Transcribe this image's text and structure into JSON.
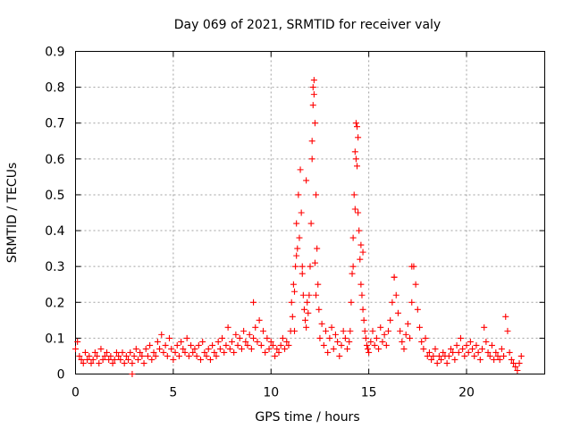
{
  "chart_data": {
    "type": "scatter",
    "title": "Day 069 of 2021, SRMTID for receiver valy",
    "xlabel": "GPS time / hours",
    "ylabel": "SRMTID / TECUs",
    "xlim": [
      0,
      24
    ],
    "ylim": [
      0,
      0.9
    ],
    "xticks": [
      0,
      5,
      10,
      15,
      20
    ],
    "yticks": [
      0,
      0.1,
      0.2,
      0.3,
      0.4,
      0.5,
      0.6,
      0.7,
      0.8,
      0.9
    ],
    "ytick_labels": [
      "0",
      "0.1",
      "0.2",
      "0.3",
      "0.4",
      "0.5",
      "0.6",
      "0.7",
      "0.8",
      "0.9"
    ],
    "grid": true,
    "marker": "+",
    "color": "#ff0000",
    "series": [
      {
        "name": "SRMTID",
        "x": [
          0.0,
          0.1,
          0.2,
          0.3,
          0.4,
          0.5,
          0.6,
          0.7,
          0.8,
          0.9,
          1.0,
          1.1,
          1.2,
          1.3,
          1.4,
          1.5,
          1.6,
          1.7,
          1.8,
          1.9,
          2.0,
          2.1,
          2.2,
          2.3,
          2.4,
          2.5,
          2.6,
          2.7,
          2.8,
          2.9,
          3.0,
          3.1,
          3.2,
          3.3,
          3.4,
          3.5,
          3.6,
          3.7,
          3.8,
          3.9,
          4.0,
          4.1,
          4.2,
          4.3,
          4.4,
          4.5,
          4.6,
          4.7,
          4.8,
          4.9,
          5.0,
          5.1,
          5.2,
          5.3,
          5.4,
          5.5,
          5.6,
          5.7,
          5.8,
          5.9,
          6.0,
          6.1,
          6.2,
          6.3,
          6.4,
          6.5,
          6.6,
          6.7,
          6.8,
          6.9,
          7.0,
          7.1,
          7.2,
          7.3,
          7.4,
          7.5,
          7.6,
          7.7,
          7.8,
          7.9,
          8.0,
          8.1,
          8.2,
          8.3,
          8.4,
          8.5,
          8.6,
          8.7,
          8.8,
          8.9,
          9.0,
          9.1,
          9.2,
          9.3,
          9.4,
          9.5,
          9.6,
          9.7,
          9.8,
          9.9,
          10.0,
          10.1,
          10.2,
          10.3,
          10.4,
          10.5,
          10.6,
          10.7,
          10.8,
          10.9,
          11.0,
          11.05,
          11.1,
          11.15,
          11.2,
          11.25,
          11.3,
          11.35,
          11.4,
          11.45,
          11.5,
          11.55,
          11.6,
          11.65,
          11.7,
          11.75,
          11.8,
          11.85,
          11.9,
          11.95,
          12.0,
          12.05,
          12.1,
          12.15,
          12.2,
          12.25,
          12.3,
          12.35,
          12.4,
          12.45,
          12.5,
          12.6,
          12.7,
          12.8,
          12.9,
          13.0,
          13.1,
          13.2,
          13.3,
          13.4,
          13.5,
          13.6,
          13.7,
          13.8,
          13.9,
          14.0,
          14.05,
          14.1,
          14.15,
          14.2,
          14.25,
          14.3,
          14.35,
          14.4,
          14.45,
          14.5,
          14.55,
          14.6,
          14.65,
          14.7,
          14.75,
          14.8,
          14.85,
          14.9,
          14.95,
          15.0,
          15.1,
          15.2,
          15.3,
          15.4,
          15.5,
          15.6,
          15.7,
          15.8,
          15.9,
          16.0,
          16.1,
          16.2,
          16.3,
          16.4,
          16.5,
          16.6,
          16.7,
          16.8,
          16.9,
          17.0,
          17.1,
          17.2,
          17.3,
          17.4,
          17.5,
          17.6,
          17.7,
          17.8,
          17.9,
          18.0,
          18.1,
          18.2,
          18.3,
          18.4,
          18.5,
          18.6,
          18.7,
          18.8,
          18.9,
          19.0,
          19.1,
          19.2,
          19.3,
          19.4,
          19.5,
          19.6,
          19.7,
          19.8,
          19.9,
          20.0,
          20.1,
          20.2,
          20.3,
          20.4,
          20.5,
          20.6,
          20.7,
          20.8,
          20.9,
          21.0,
          21.1,
          21.2,
          21.3,
          21.4,
          21.5,
          21.6,
          21.7,
          21.8,
          21.9,
          22.0,
          22.1,
          22.2,
          22.3,
          22.4,
          22.5,
          22.6,
          22.7,
          22.8,
          2.9,
          9.1,
          11.6,
          11.8,
          12.1,
          12.15,
          12.2,
          14.3,
          14.35,
          14.4,
          14.45,
          16.3,
          17.2,
          12.25,
          11.3,
          14.6,
          14.7,
          12.3,
          11.2,
          14.2
        ],
        "y": [
          0.07,
          0.09,
          0.05,
          0.04,
          0.03,
          0.06,
          0.04,
          0.05,
          0.03,
          0.04,
          0.06,
          0.05,
          0.03,
          0.07,
          0.04,
          0.05,
          0.06,
          0.04,
          0.05,
          0.03,
          0.04,
          0.06,
          0.05,
          0.04,
          0.06,
          0.03,
          0.05,
          0.04,
          0.06,
          0.03,
          0.05,
          0.07,
          0.04,
          0.06,
          0.05,
          0.03,
          0.07,
          0.05,
          0.08,
          0.04,
          0.06,
          0.05,
          0.09,
          0.07,
          0.11,
          0.06,
          0.08,
          0.05,
          0.1,
          0.07,
          0.04,
          0.06,
          0.08,
          0.05,
          0.09,
          0.07,
          0.06,
          0.1,
          0.05,
          0.08,
          0.06,
          0.07,
          0.05,
          0.08,
          0.04,
          0.09,
          0.06,
          0.05,
          0.07,
          0.04,
          0.08,
          0.06,
          0.05,
          0.09,
          0.07,
          0.1,
          0.06,
          0.08,
          0.13,
          0.07,
          0.09,
          0.06,
          0.11,
          0.08,
          0.1,
          0.07,
          0.12,
          0.09,
          0.08,
          0.11,
          0.07,
          0.1,
          0.13,
          0.09,
          0.15,
          0.08,
          0.12,
          0.06,
          0.1,
          0.07,
          0.09,
          0.08,
          0.05,
          0.07,
          0.06,
          0.08,
          0.1,
          0.07,
          0.09,
          0.08,
          0.12,
          0.2,
          0.16,
          0.25,
          0.12,
          0.3,
          0.42,
          0.35,
          0.5,
          0.38,
          0.57,
          0.45,
          0.3,
          0.22,
          0.18,
          0.15,
          0.13,
          0.2,
          0.17,
          0.22,
          0.3,
          0.42,
          0.6,
          0.75,
          0.82,
          0.7,
          0.5,
          0.35,
          0.25,
          0.18,
          0.1,
          0.14,
          0.08,
          0.12,
          0.06,
          0.1,
          0.13,
          0.07,
          0.11,
          0.09,
          0.05,
          0.08,
          0.12,
          0.1,
          0.07,
          0.09,
          0.12,
          0.2,
          0.28,
          0.38,
          0.5,
          0.62,
          0.7,
          0.58,
          0.45,
          0.4,
          0.32,
          0.25,
          0.22,
          0.18,
          0.15,
          0.12,
          0.1,
          0.08,
          0.07,
          0.06,
          0.09,
          0.12,
          0.08,
          0.1,
          0.07,
          0.13,
          0.09,
          0.11,
          0.08,
          0.12,
          0.15,
          0.2,
          0.27,
          0.22,
          0.17,
          0.12,
          0.09,
          0.07,
          0.11,
          0.14,
          0.1,
          0.2,
          0.3,
          0.25,
          0.18,
          0.13,
          0.09,
          0.07,
          0.1,
          0.05,
          0.06,
          0.04,
          0.05,
          0.07,
          0.03,
          0.05,
          0.04,
          0.06,
          0.05,
          0.03,
          0.05,
          0.07,
          0.06,
          0.04,
          0.08,
          0.06,
          0.1,
          0.07,
          0.05,
          0.08,
          0.06,
          0.09,
          0.07,
          0.05,
          0.08,
          0.06,
          0.04,
          0.07,
          0.13,
          0.09,
          0.06,
          0.05,
          0.08,
          0.04,
          0.06,
          0.05,
          0.04,
          0.07,
          0.05,
          0.16,
          0.12,
          0.06,
          0.04,
          0.03,
          0.02,
          0.01,
          0.03,
          0.05,
          0.0,
          0.2,
          0.28,
          0.54,
          0.65,
          0.8,
          0.78,
          0.46,
          0.6,
          0.69,
          0.66,
          0.27,
          0.3,
          0.31,
          0.33,
          0.36,
          0.34,
          0.22,
          0.23,
          0.3
        ]
      }
    ]
  }
}
